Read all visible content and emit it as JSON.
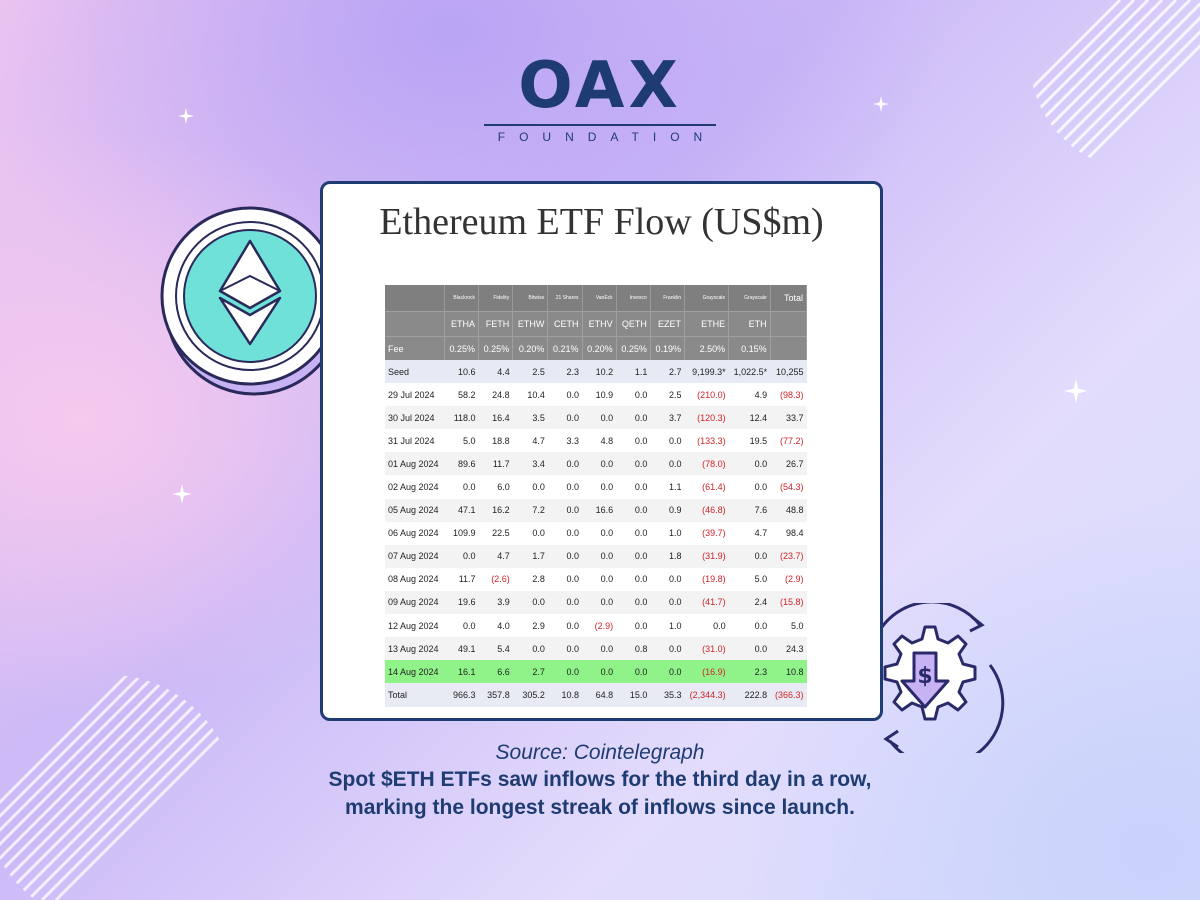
{
  "logo": {
    "name": "OAX",
    "subtitle": "FOUNDATION"
  },
  "icons": {
    "left": "ethereum-coin-icon",
    "right": "dollar-gear-icon"
  },
  "colors": {
    "brand": "#1f3c72",
    "negative": "#d0232a",
    "highlight": "#8ff38a",
    "eth_coin": "#6fe1d9"
  },
  "chart_data": {
    "type": "table",
    "title": "Ethereum ETF Flow (US$m)",
    "issuers": [
      "Blackrock",
      "Fidelity",
      "Bitwise",
      "21 Shares",
      "VanEck",
      "Invesco",
      "Franklin",
      "Grayscale",
      "Grayscale",
      "Total"
    ],
    "tickers": [
      "ETHA",
      "FETH",
      "ETHW",
      "CETH",
      "ETHV",
      "QETH",
      "EZET",
      "ETHE",
      "ETH"
    ],
    "fee_label": "Fee",
    "fees": [
      "0.25%",
      "0.25%",
      "0.20%",
      "0.21%",
      "0.20%",
      "0.25%",
      "0.19%",
      "2.50%",
      "0.15%"
    ],
    "rows": [
      {
        "label": "Seed",
        "values": [
          "10.6",
          "4.4",
          "2.5",
          "2.3",
          "10.2",
          "1.1",
          "2.7",
          "9,199.3*",
          "1,022.5*",
          "10,255"
        ]
      },
      {
        "label": "29 Jul 2024",
        "values": [
          "58.2",
          "24.8",
          "10.4",
          "0.0",
          "10.9",
          "0.0",
          "2.5",
          "(210.0)",
          "4.9",
          "(98.3)"
        ]
      },
      {
        "label": "30 Jul 2024",
        "values": [
          "118.0",
          "16.4",
          "3.5",
          "0.0",
          "0.0",
          "0.0",
          "3.7",
          "(120.3)",
          "12.4",
          "33.7"
        ]
      },
      {
        "label": "31 Jul 2024",
        "values": [
          "5.0",
          "18.8",
          "4.7",
          "3.3",
          "4.8",
          "0.0",
          "0.0",
          "(133.3)",
          "19.5",
          "(77.2)"
        ]
      },
      {
        "label": "01 Aug 2024",
        "values": [
          "89.6",
          "11.7",
          "3.4",
          "0.0",
          "0.0",
          "0.0",
          "0.0",
          "(78.0)",
          "0.0",
          "26.7"
        ]
      },
      {
        "label": "02 Aug 2024",
        "values": [
          "0.0",
          "6.0",
          "0.0",
          "0.0",
          "0.0",
          "0.0",
          "1.1",
          "(61.4)",
          "0.0",
          "(54.3)"
        ]
      },
      {
        "label": "05 Aug 2024",
        "values": [
          "47.1",
          "16.2",
          "7.2",
          "0.0",
          "16.6",
          "0.0",
          "0.9",
          "(46.8)",
          "7.6",
          "48.8"
        ]
      },
      {
        "label": "06 Aug 2024",
        "values": [
          "109.9",
          "22.5",
          "0.0",
          "0.0",
          "0.0",
          "0.0",
          "1.0",
          "(39.7)",
          "4.7",
          "98.4"
        ]
      },
      {
        "label": "07 Aug 2024",
        "values": [
          "0.0",
          "4.7",
          "1.7",
          "0.0",
          "0.0",
          "0.0",
          "1.8",
          "(31.9)",
          "0.0",
          "(23.7)"
        ]
      },
      {
        "label": "08 Aug 2024",
        "values": [
          "11.7",
          "(2.6)",
          "2.8",
          "0.0",
          "0.0",
          "0.0",
          "0.0",
          "(19.8)",
          "5.0",
          "(2.9)"
        ]
      },
      {
        "label": "09 Aug 2024",
        "values": [
          "19.6",
          "3.9",
          "0.0",
          "0.0",
          "0.0",
          "0.0",
          "0.0",
          "(41.7)",
          "2.4",
          "(15.8)"
        ]
      },
      {
        "label": "12 Aug 2024",
        "values": [
          "0.0",
          "4.0",
          "2.9",
          "0.0",
          "(2.9)",
          "0.0",
          "1.0",
          "0.0",
          "0.0",
          "5.0"
        ]
      },
      {
        "label": "13 Aug 2024",
        "values": [
          "49.1",
          "5.4",
          "0.0",
          "0.0",
          "0.0",
          "0.8",
          "0.0",
          "(31.0)",
          "0.0",
          "24.3"
        ]
      },
      {
        "label": "14 Aug 2024",
        "values": [
          "16.1",
          "6.6",
          "2.7",
          "0.0",
          "0.0",
          "0.0",
          "0.0",
          "(16.9)",
          "2.3",
          "10.8"
        ],
        "highlight": true
      },
      {
        "label": "Total",
        "values": [
          "966.3",
          "357.8",
          "305.2",
          "10.8",
          "64.8",
          "15.0",
          "35.3",
          "(2,344.3)",
          "222.8",
          "(366.3)"
        ]
      }
    ]
  },
  "caption": {
    "source": "Source: Cointelegraph",
    "line1": "Spot $ETH ETFs saw inflows for the third day in a row,",
    "line2": "marking the longest streak of inflows since launch."
  }
}
